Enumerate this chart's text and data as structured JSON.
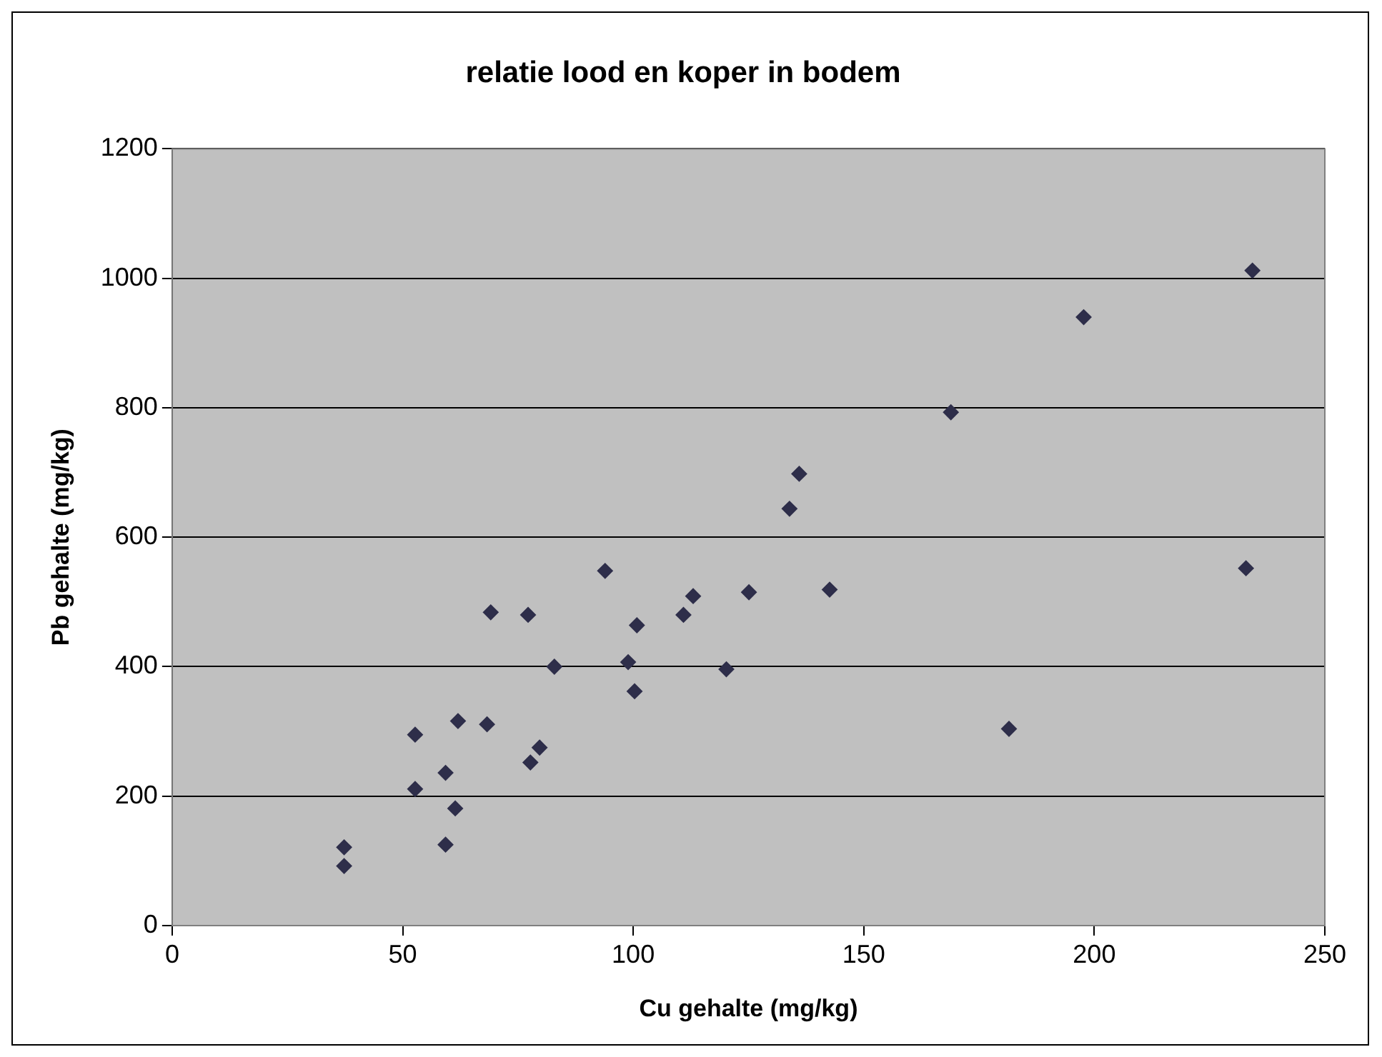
{
  "chart_data": {
    "type": "scatter",
    "title": "relatie lood en koper in bodem",
    "xlabel": "Cu gehalte (mg/kg)",
    "ylabel": "Pb gehalte (mg/kg)",
    "x": [
      37.3,
      37.3,
      52.7,
      52.7,
      59.3,
      59.3,
      61.4,
      62,
      68.3,
      69.1,
      77.2,
      77.7,
      79.7,
      82.9,
      93.9,
      98.9,
      100.8,
      100.3,
      110.9,
      113,
      120.2,
      125.1,
      136,
      133.9,
      142.6,
      168.9,
      181.5,
      197.7,
      234.3,
      232.9
    ],
    "series": [
      {
        "color": "#2e2e4a",
        "values": [
          121,
          92,
          295,
          211,
          236,
          125,
          181,
          316,
          311,
          484,
          480,
          252,
          275,
          400,
          548,
          407,
          464,
          362,
          480,
          509,
          396,
          515,
          698,
          644,
          519,
          793,
          304,
          940,
          1012,
          552
        ]
      }
    ],
    "xlim": [
      0,
      250
    ],
    "xticks": [
      0,
      50,
      100,
      150,
      200,
      250
    ],
    "ylim": [
      0,
      1200
    ],
    "yticks": [
      0,
      200,
      400,
      600,
      800,
      1000,
      1200
    ],
    "grid": "y",
    "legend": false,
    "marker": "diamond"
  }
}
